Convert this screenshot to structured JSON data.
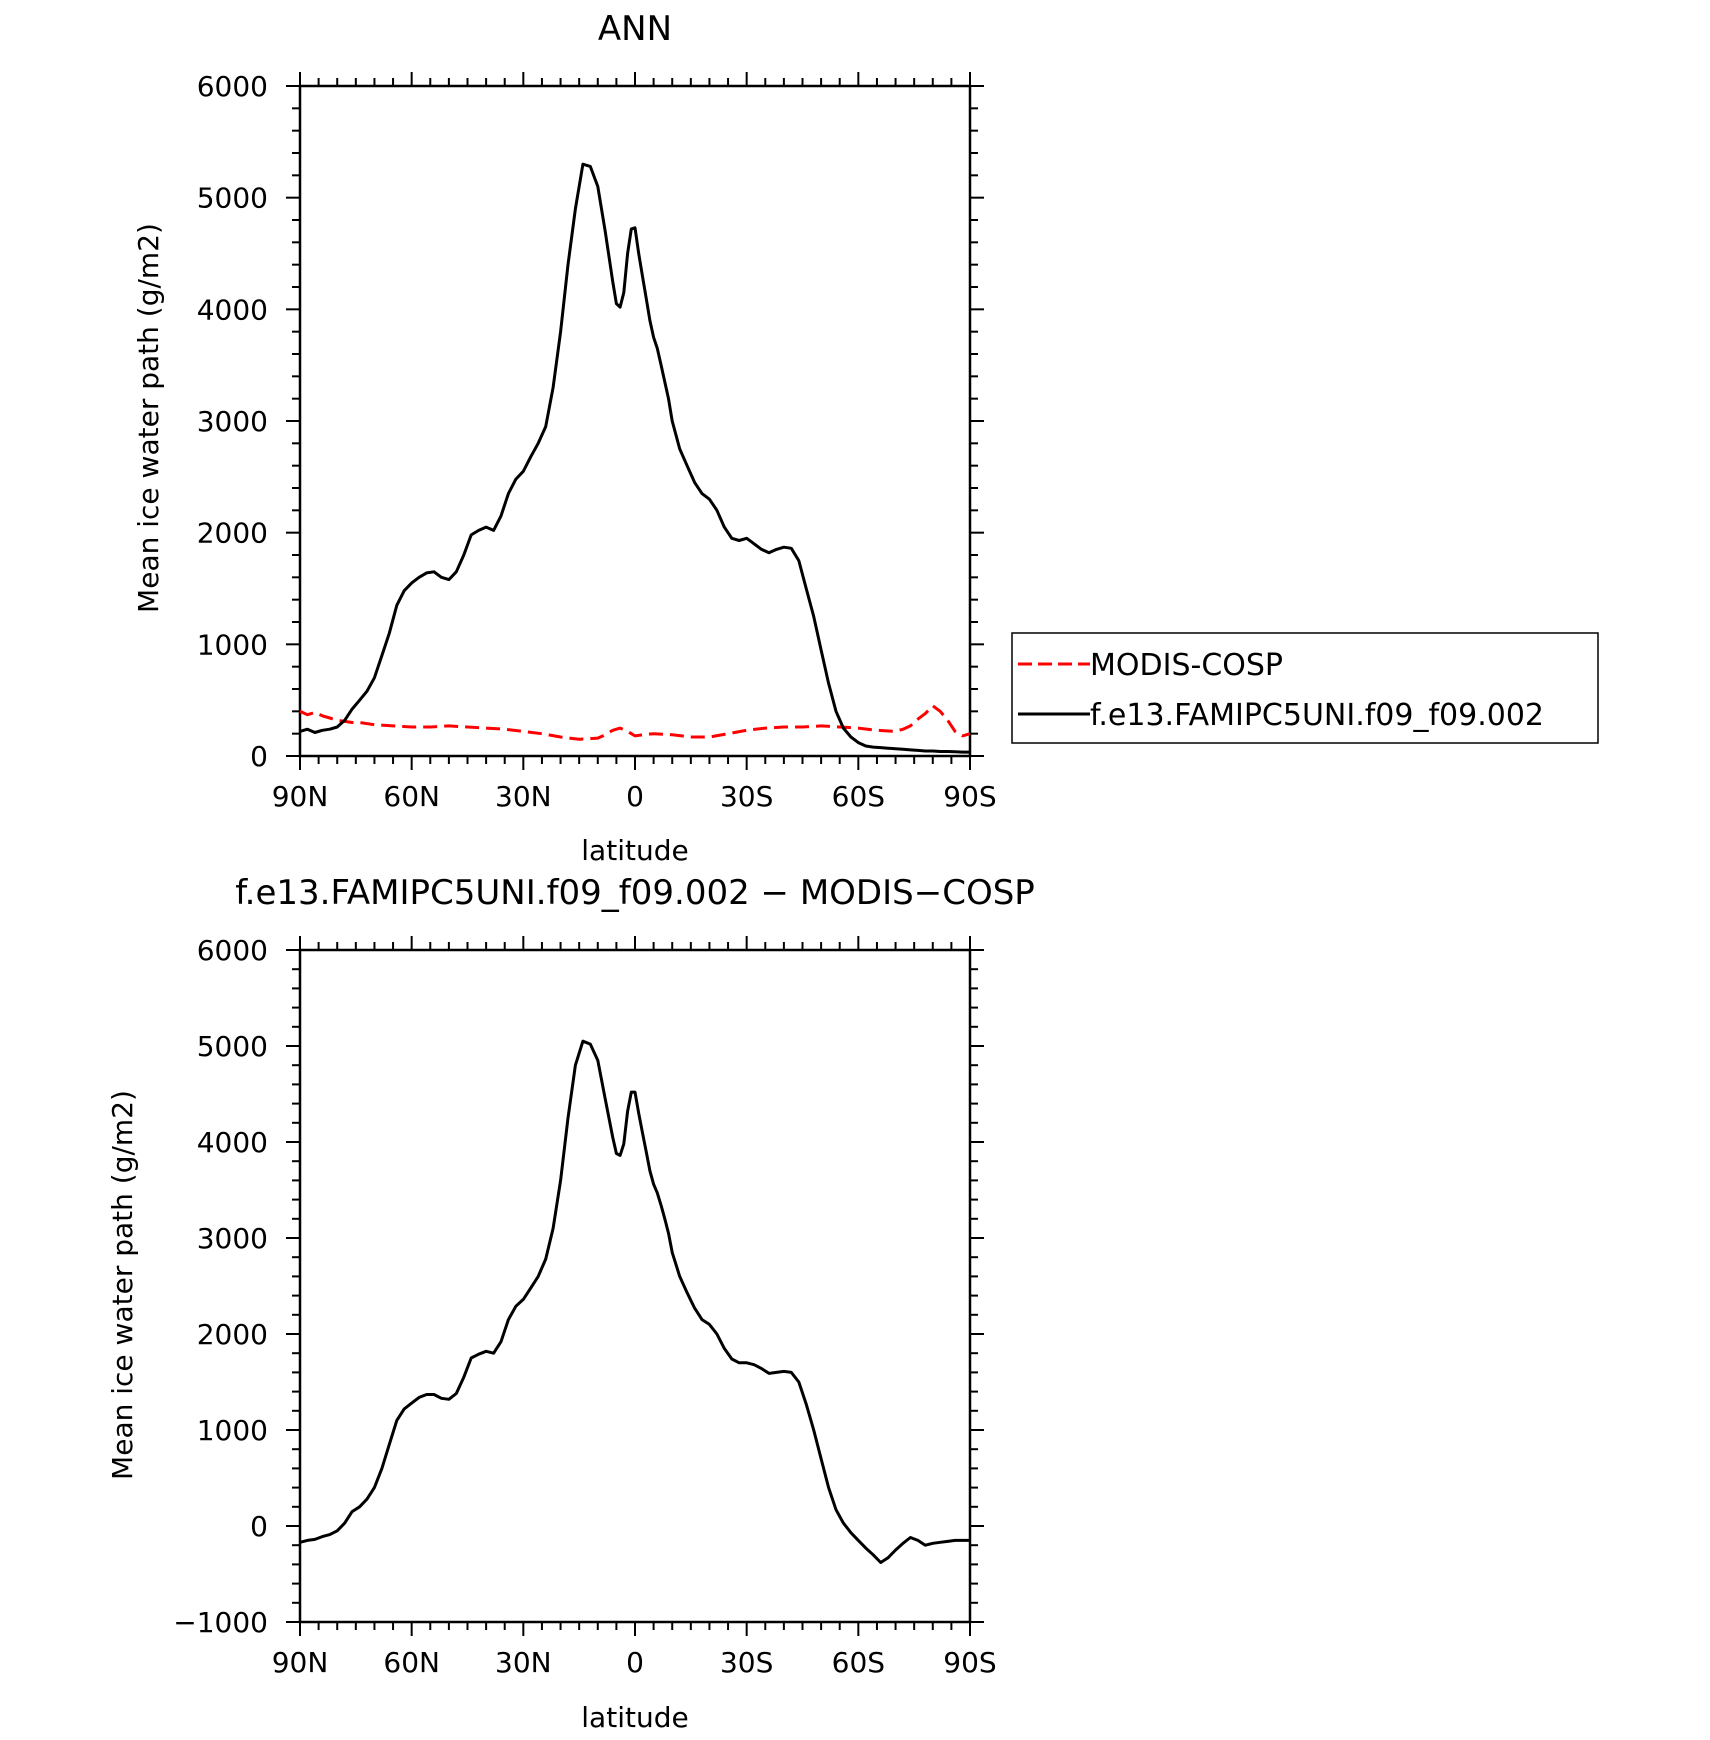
{
  "chart_data": [
    {
      "type": "line",
      "title": "ANN",
      "xlabel": "latitude",
      "ylabel": "Mean ice water path (g/m2)",
      "xlim": [
        90,
        -90
      ],
      "ylim": [
        0,
        6000
      ],
      "xticks": [
        90,
        60,
        30,
        0,
        -30,
        -60,
        -90
      ],
      "xtick_labels": [
        "90N",
        "60N",
        "30N",
        "0",
        "30S",
        "60S",
        "90S"
      ],
      "yticks": [
        0,
        1000,
        2000,
        3000,
        4000,
        5000,
        6000
      ],
      "ytick_labels": [
        "0",
        "1000",
        "2000",
        "3000",
        "4000",
        "5000",
        "6000"
      ],
      "grid": false,
      "legend_position": "right",
      "series": [
        {
          "name": "MODIS-COSP",
          "color": "#ff0000",
          "dash": "dashed",
          "x": [
            90,
            88,
            86,
            84,
            82,
            80,
            78,
            76,
            74,
            70,
            65,
            60,
            55,
            50,
            45,
            40,
            35,
            30,
            25,
            20,
            15,
            10,
            8,
            6,
            4,
            2,
            0,
            -2,
            -5,
            -10,
            -15,
            -20,
            -25,
            -30,
            -35,
            -40,
            -45,
            -50,
            -55,
            -60,
            -65,
            -70,
            -72,
            -74,
            -76,
            -78,
            -80,
            -82,
            -84,
            -86,
            -88,
            -90
          ],
          "y": [
            400,
            370,
            390,
            360,
            340,
            320,
            310,
            300,
            300,
            280,
            270,
            260,
            260,
            270,
            260,
            250,
            240,
            220,
            200,
            170,
            150,
            160,
            190,
            230,
            250,
            220,
            180,
            190,
            200,
            190,
            170,
            170,
            200,
            230,
            250,
            260,
            260,
            270,
            260,
            250,
            230,
            220,
            240,
            270,
            330,
            380,
            450,
            400,
            320,
            220,
            180,
            200
          ]
        },
        {
          "name": "f.e13.FAMIPC5UNI.f09_f09.002",
          "color": "#000000",
          "dash": "solid",
          "x": [
            90,
            88,
            86,
            84,
            82,
            80,
            78,
            76,
            74,
            72,
            70,
            68,
            66,
            64,
            62,
            60,
            58,
            56,
            54,
            52,
            50,
            48,
            46,
            44,
            42,
            40,
            38,
            36,
            34,
            32,
            30,
            28,
            26,
            24,
            22,
            20,
            18,
            16,
            14,
            12,
            10,
            8,
            6,
            5,
            4,
            3,
            2,
            1,
            0,
            -1,
            -2,
            -3,
            -4,
            -5,
            -6,
            -7,
            -8,
            -9,
            -10,
            -12,
            -14,
            -16,
            -18,
            -20,
            -22,
            -24,
            -26,
            -28,
            -30,
            -32,
            -34,
            -36,
            -38,
            -40,
            -42,
            -44,
            -46,
            -48,
            -50,
            -52,
            -54,
            -56,
            -58,
            -60,
            -62,
            -64,
            -66,
            -68,
            -70,
            -72,
            -74,
            -76,
            -78,
            -80,
            -82,
            -84,
            -86,
            -88,
            -90
          ],
          "y": [
            220,
            240,
            210,
            230,
            240,
            260,
            320,
            420,
            500,
            580,
            700,
            900,
            1100,
            1350,
            1480,
            1550,
            1600,
            1640,
            1650,
            1600,
            1580,
            1650,
            1800,
            1980,
            2020,
            2050,
            2020,
            2150,
            2350,
            2480,
            2550,
            2680,
            2800,
            2950,
            3300,
            3800,
            4400,
            4900,
            5300,
            5280,
            5100,
            4700,
            4250,
            4050,
            4020,
            4150,
            4500,
            4720,
            4730,
            4500,
            4300,
            4100,
            3900,
            3750,
            3650,
            3500,
            3350,
            3200,
            3000,
            2750,
            2600,
            2450,
            2350,
            2300,
            2200,
            2050,
            1950,
            1930,
            1950,
            1900,
            1850,
            1820,
            1850,
            1870,
            1860,
            1750,
            1500,
            1250,
            950,
            650,
            400,
            250,
            170,
            120,
            90,
            80,
            75,
            70,
            65,
            60,
            55,
            50,
            45,
            45,
            40,
            40,
            38,
            35,
            35
          ],
          "x_trim_note": ""
        }
      ]
    },
    {
      "type": "line",
      "title": "f.e13.FAMIPC5UNI.f09_f09.002 − MODIS−COSP",
      "xlabel": "latitude",
      "ylabel": "Mean ice water path (g/m2)",
      "xlim": [
        90,
        -90
      ],
      "ylim": [
        -1000,
        6000
      ],
      "xticks": [
        90,
        60,
        30,
        0,
        -30,
        -60,
        -90
      ],
      "xtick_labels": [
        "90N",
        "60N",
        "30N",
        "0",
        "30S",
        "60S",
        "90S"
      ],
      "yticks": [
        -1000,
        0,
        1000,
        2000,
        3000,
        4000,
        5000,
        6000
      ],
      "ytick_labels": [
        "−1000",
        "0",
        "1000",
        "2000",
        "3000",
        "4000",
        "5000",
        "6000"
      ],
      "grid": false,
      "series": [
        {
          "color": "#000000",
          "dash": "solid",
          "x": [
            90,
            88,
            86,
            84,
            82,
            80,
            78,
            76,
            74,
            72,
            70,
            68,
            66,
            64,
            62,
            60,
            58,
            56,
            54,
            52,
            50,
            48,
            46,
            44,
            42,
            40,
            38,
            36,
            34,
            32,
            30,
            28,
            26,
            24,
            22,
            20,
            18,
            16,
            14,
            12,
            10,
            8,
            6,
            5,
            4,
            3,
            2,
            1,
            0,
            -1,
            -2,
            -3,
            -4,
            -5,
            -6,
            -7,
            -8,
            -9,
            -10,
            -12,
            -14,
            -16,
            -18,
            -20,
            -22,
            -24,
            -26,
            -28,
            -30,
            -32,
            -34,
            -36,
            -38,
            -40,
            -42,
            -44,
            -46,
            -48,
            -50,
            -52,
            -54,
            -56,
            -58,
            -60,
            -62,
            -64,
            -66,
            -68,
            -70,
            -72,
            -74,
            -76,
            -78,
            -80,
            -82,
            -84,
            -86,
            -88,
            -90
          ],
          "y": [
            -170,
            -150,
            -140,
            -110,
            -90,
            -50,
            30,
            150,
            200,
            280,
            400,
            600,
            850,
            1100,
            1220,
            1280,
            1340,
            1370,
            1370,
            1330,
            1320,
            1380,
            1550,
            1750,
            1790,
            1820,
            1800,
            1920,
            2150,
            2290,
            2360,
            2480,
            2600,
            2780,
            3100,
            3600,
            4250,
            4800,
            5050,
            5020,
            4850,
            4450,
            4050,
            3880,
            3860,
            3980,
            4320,
            4520,
            4520,
            4300,
            4100,
            3900,
            3700,
            3560,
            3470,
            3340,
            3200,
            3050,
            2850,
            2600,
            2430,
            2270,
            2150,
            2100,
            2000,
            1850,
            1740,
            1700,
            1700,
            1680,
            1640,
            1590,
            1600,
            1610,
            1600,
            1500,
            1270,
            1000,
            700,
            400,
            170,
            30,
            -70,
            -150,
            -230,
            -300,
            -380,
            -330,
            -250,
            -180,
            -120,
            -150,
            -200,
            -180,
            -170,
            -160,
            -150,
            -150,
            -150
          ],
          "x_trim_note": ""
        }
      ]
    }
  ]
}
